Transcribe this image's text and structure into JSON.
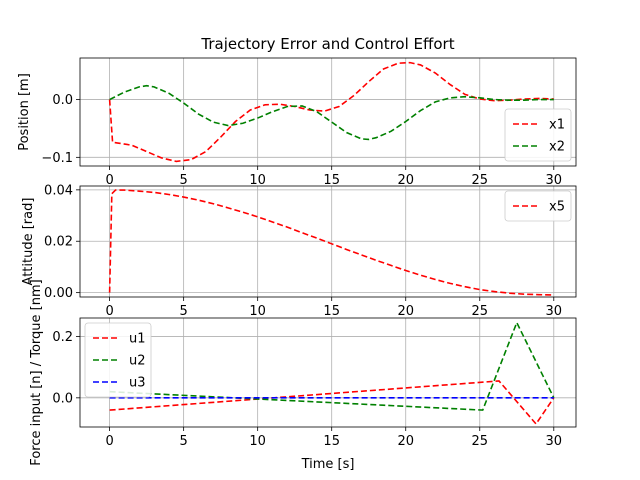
{
  "figure": {
    "title": "Trajectory Error and Control Effort",
    "xlabel": "Time [s]"
  },
  "chart_data": [
    {
      "type": "line",
      "ylabel": "Position [m]",
      "xlim": [
        -2,
        31.5
      ],
      "ylim": [
        -0.115,
        0.072
      ],
      "xticks": [
        0,
        5,
        10,
        15,
        20,
        25,
        30
      ],
      "yticks": [
        -0.1,
        0.0
      ],
      "ytick_labels": [
        "−0.1",
        "0.0"
      ],
      "grid": true,
      "legend_position": "lower right",
      "series": [
        {
          "name": "x1",
          "color": "#ff0000",
          "x": [
            0,
            0.2,
            0.5,
            1.5,
            2.5,
            3.5,
            4.5,
            5.5,
            6.5,
            7.5,
            8.5,
            9.5,
            10.5,
            11.5,
            12.5,
            13.5,
            14.5,
            15.5,
            16.5,
            17.5,
            18.5,
            19.5,
            20.3,
            21,
            22,
            23,
            24,
            25,
            26,
            27,
            28,
            29,
            30
          ],
          "y": [
            0.0,
            -0.074,
            -0.075,
            -0.079,
            -0.09,
            -0.101,
            -0.107,
            -0.104,
            -0.09,
            -0.065,
            -0.038,
            -0.018,
            -0.009,
            -0.008,
            -0.012,
            -0.018,
            -0.02,
            -0.012,
            0.007,
            0.031,
            0.053,
            0.063,
            0.064,
            0.06,
            0.046,
            0.026,
            0.009,
            0.001,
            -0.002,
            -0.001,
            0.001,
            0.002,
            0.001
          ]
        },
        {
          "name": "x2",
          "color": "#008000",
          "x": [
            0,
            1,
            2,
            2.5,
            3,
            4,
            5,
            6,
            7,
            8,
            9,
            10,
            11,
            12,
            13,
            14,
            15,
            16,
            17,
            17.5,
            18,
            19,
            20,
            21,
            22,
            23,
            24,
            25,
            26,
            27,
            28,
            29,
            30
          ],
          "y": [
            0.0,
            0.013,
            0.022,
            0.024,
            0.022,
            0.011,
            -0.006,
            -0.025,
            -0.039,
            -0.045,
            -0.041,
            -0.032,
            -0.021,
            -0.012,
            -0.011,
            -0.021,
            -0.039,
            -0.057,
            -0.068,
            -0.069,
            -0.066,
            -0.055,
            -0.038,
            -0.019,
            -0.004,
            0.003,
            0.005,
            0.003,
            0.0,
            -0.001,
            -0.001,
            0.0,
            0.0
          ]
        }
      ]
    },
    {
      "type": "line",
      "ylabel": "Attitude [rad]",
      "xlim": [
        -2,
        31.5
      ],
      "ylim": [
        -0.0017,
        0.0415
      ],
      "xticks": [
        0,
        5,
        10,
        15,
        20,
        25,
        30
      ],
      "yticks": [
        0.0,
        0.02,
        0.04
      ],
      "ytick_labels": [
        "0.00",
        "0.02",
        "0.04"
      ],
      "grid": true,
      "legend_position": "upper right",
      "series": [
        {
          "name": "x5",
          "color": "#ff0000",
          "x": [
            0,
            0.15,
            0.4,
            1,
            2,
            3,
            4,
            5,
            6,
            7,
            8,
            9,
            10,
            11,
            12,
            13,
            14,
            15,
            16,
            17,
            18,
            19,
            20,
            21,
            22,
            23,
            24,
            25,
            26,
            27,
            28,
            29,
            30
          ],
          "y": [
            0.0,
            0.0385,
            0.0399,
            0.0399,
            0.0395,
            0.039,
            0.0382,
            0.0372,
            0.036,
            0.0346,
            0.033,
            0.0313,
            0.0295,
            0.0275,
            0.0255,
            0.0233,
            0.0212,
            0.019,
            0.0168,
            0.0147,
            0.0126,
            0.0106,
            0.0086,
            0.0068,
            0.0051,
            0.0036,
            0.0023,
            0.0012,
            0.0004,
            -0.0002,
            -0.0006,
            -0.0008,
            -0.0009
          ]
        }
      ]
    },
    {
      "type": "line",
      "ylabel": "Force input [n] / Torque [nm]",
      "xlim": [
        -2,
        31.5
      ],
      "ylim": [
        -0.095,
        0.26
      ],
      "xticks": [
        0,
        5,
        10,
        15,
        20,
        25,
        30
      ],
      "xtick_labels": [
        "0",
        "5",
        "10",
        "15",
        "20",
        "25",
        "30"
      ],
      "yticks": [
        0.0,
        0.2
      ],
      "ytick_labels": [
        "0.0",
        "0.2"
      ],
      "grid": true,
      "legend_position": "upper left",
      "series": [
        {
          "name": "u1",
          "color": "#ff0000",
          "x": [
            0,
            26.3,
            28.8,
            30
          ],
          "y": [
            -0.04,
            0.055,
            -0.085,
            0.0
          ]
        },
        {
          "name": "u2",
          "color": "#008000",
          "x": [
            0,
            25.2,
            27.5,
            30
          ],
          "y": [
            0.02,
            -0.04,
            0.245,
            0.0
          ]
        },
        {
          "name": "u3",
          "color": "#0000ff",
          "x": [
            0,
            30
          ],
          "y": [
            0.0,
            0.0
          ]
        }
      ]
    }
  ]
}
